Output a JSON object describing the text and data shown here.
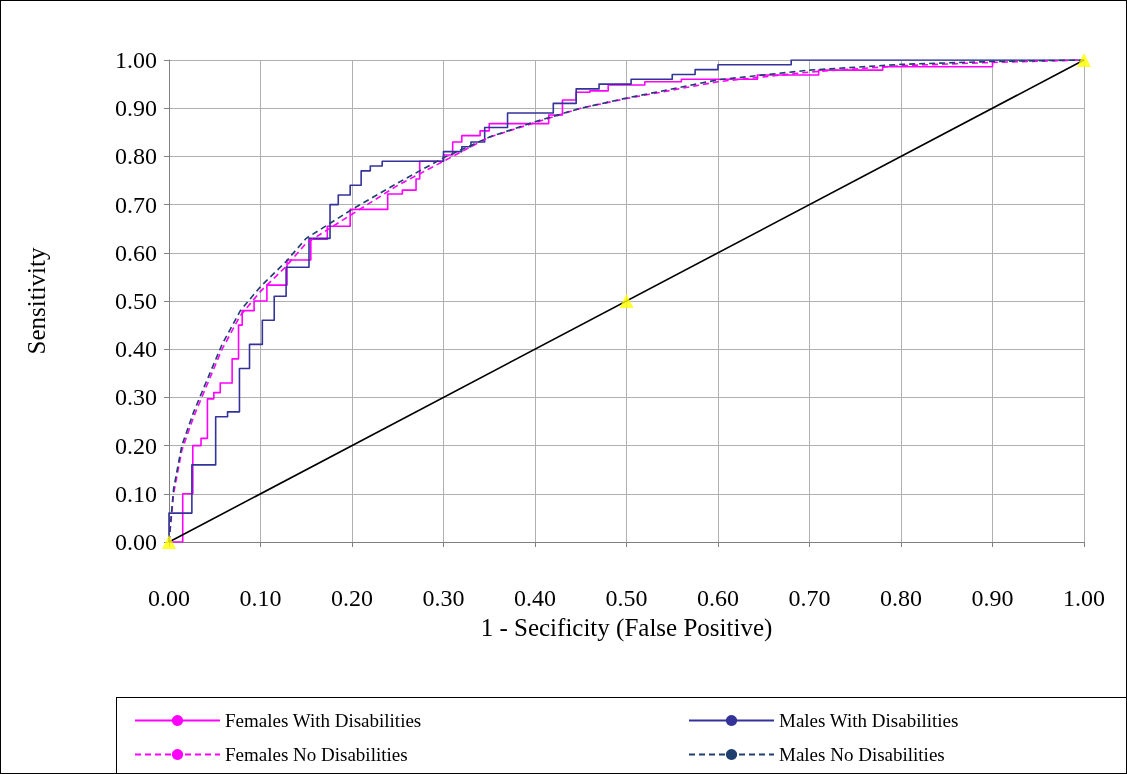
{
  "chart_data": {
    "type": "line",
    "xlabel": "1 - Secificity (False Positive)",
    "ylabel": "Sensitivity",
    "xlim": [
      0,
      1
    ],
    "ylim": [
      0,
      1
    ],
    "xticks": [
      {
        "value": 0,
        "label": "0.00"
      },
      {
        "value": 0.1,
        "label": "0.10"
      },
      {
        "value": 0.2,
        "label": "0.20"
      },
      {
        "value": 0.3,
        "label": "0.30"
      },
      {
        "value": 0.4,
        "label": "0.40"
      },
      {
        "value": 0.5,
        "label": "0.50"
      },
      {
        "value": 0.6,
        "label": "0.60"
      },
      {
        "value": 0.7,
        "label": "0.70"
      },
      {
        "value": 0.8,
        "label": "0.80"
      },
      {
        "value": 0.9,
        "label": "0.90"
      },
      {
        "value": 1,
        "label": "1.00"
      }
    ],
    "yticks": [
      {
        "value": 0,
        "label": "0.00"
      },
      {
        "value": 0.1,
        "label": "0.10"
      },
      {
        "value": 0.2,
        "label": "0.20"
      },
      {
        "value": 0.3,
        "label": "0.30"
      },
      {
        "value": 0.4,
        "label": "0.40"
      },
      {
        "value": 0.5,
        "label": "0.50"
      },
      {
        "value": 0.6,
        "label": "0.60"
      },
      {
        "value": 0.7,
        "label": "0.70"
      },
      {
        "value": 0.8,
        "label": "0.80"
      },
      {
        "value": 0.9,
        "label": "0.90"
      },
      {
        "value": 1,
        "label": "1.00"
      }
    ],
    "grid": true,
    "legend": "bottom",
    "marker": "none",
    "series": [
      {
        "name": "Females With Disabilities",
        "type": "step",
        "color": "#ff00ff",
        "line_style": "solid",
        "x": [
          0,
          0.015,
          0.026,
          0.035,
          0.042,
          0.049,
          0.056,
          0.069,
          0.076,
          0.08,
          0.093,
          0.107,
          0.129,
          0.155,
          0.173,
          0.198,
          0.239,
          0.255,
          0.27,
          0.274,
          0.3,
          0.31,
          0.32,
          0.34,
          0.35,
          0.415,
          0.43,
          0.445,
          0.46,
          0.48,
          0.52,
          0.56,
          0.643,
          0.71,
          0.78,
          0.9,
          0.9
        ],
        "values": [
          0,
          0.1,
          0.2,
          0.215,
          0.297,
          0.31,
          0.33,
          0.38,
          0.45,
          0.48,
          0.5,
          0.533,
          0.585,
          0.628,
          0.655,
          0.69,
          0.722,
          0.73,
          0.753,
          0.79,
          0.803,
          0.83,
          0.843,
          0.853,
          0.868,
          0.886,
          0.917,
          0.933,
          0.936,
          0.948,
          0.955,
          0.96,
          0.969,
          0.979,
          0.986,
          0.993,
          1
        ]
      },
      {
        "name": "Males With Disabilities",
        "type": "step",
        "color": "#333399",
        "line_style": "solid",
        "x": [
          0,
          0,
          0.025,
          0.051,
          0.064,
          0.077,
          0.088,
          0.102,
          0.115,
          0.128,
          0.153,
          0.176,
          0.185,
          0.198,
          0.21,
          0.22,
          0.233,
          0.3,
          0.32,
          0.33,
          0.345,
          0.37,
          0.42,
          0.445,
          0.47,
          0.505,
          0.55,
          0.575,
          0.6,
          0.68,
          1
        ],
        "values": [
          0,
          0.06,
          0.16,
          0.26,
          0.27,
          0.36,
          0.41,
          0.46,
          0.51,
          0.57,
          0.63,
          0.7,
          0.72,
          0.74,
          0.77,
          0.78,
          0.79,
          0.81,
          0.82,
          0.83,
          0.86,
          0.89,
          0.91,
          0.94,
          0.95,
          0.96,
          0.97,
          0.98,
          0.99,
          1,
          1
        ]
      },
      {
        "name": "Females No Disabilities",
        "color": "#ff00ff",
        "line_style": "dashed",
        "x": [
          0,
          0.005,
          0.014,
          0.027,
          0.038,
          0.058,
          0.078,
          0.1,
          0.127,
          0.15,
          0.2,
          0.25,
          0.3,
          0.35,
          0.4,
          0.45,
          0.5,
          0.6,
          0.7,
          0.8,
          0.9,
          1
        ],
        "values": [
          0,
          0.1,
          0.19,
          0.26,
          0.31,
          0.4,
          0.47,
          0.52,
          0.57,
          0.62,
          0.68,
          0.74,
          0.79,
          0.84,
          0.87,
          0.9,
          0.92,
          0.955,
          0.975,
          0.988,
          0.995,
          1
        ]
      },
      {
        "name": "Males No Disabilities",
        "color": "#1f3f6f",
        "line_style": "dashed",
        "x": [
          0,
          0.005,
          0.014,
          0.027,
          0.038,
          0.058,
          0.078,
          0.1,
          0.127,
          0.15,
          0.2,
          0.25,
          0.3,
          0.35,
          0.4,
          0.45,
          0.5,
          0.6,
          0.7,
          0.8,
          0.9,
          1
        ],
        "values": [
          0,
          0.11,
          0.2,
          0.27,
          0.32,
          0.41,
          0.48,
          0.53,
          0.58,
          0.63,
          0.69,
          0.745,
          0.797,
          0.84,
          0.872,
          0.9,
          0.921,
          0.959,
          0.979,
          0.991,
          0.997,
          1
        ]
      },
      {
        "color": "#000000",
        "line_style": "solid",
        "x": [
          0,
          1
        ],
        "values": [
          0,
          1
        ]
      },
      {
        "type": "scatter",
        "color": "#ffff00",
        "marker": "triangle",
        "x": [
          0,
          0.5,
          1
        ],
        "values": [
          0,
          0.5,
          1
        ]
      }
    ]
  }
}
